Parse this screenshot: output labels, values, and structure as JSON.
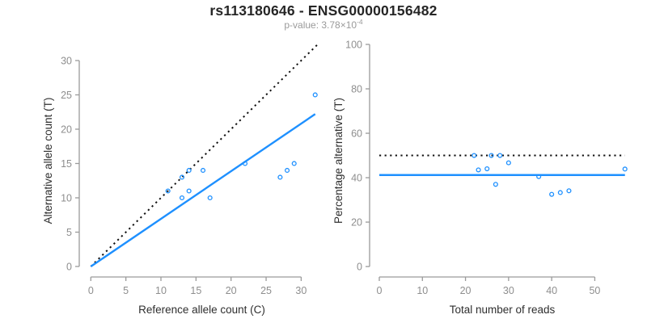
{
  "header": {
    "title": "rs113180646 - ENSG00000156482",
    "p_label": "p-value: 3.78×10",
    "p_exponent": "-4"
  },
  "colors": {
    "point_blue": "#1E90FF",
    "fit_line_blue": "#1E90FF",
    "reference_line_black": "#111111",
    "axis_gray": "#9a9a9a",
    "tick_label_gray": "#8e8e8e",
    "axis_title_dark": "#2e2e2e",
    "title_dark": "#262626",
    "subtitle_gray": "#9a9a9a",
    "background": "#ffffff"
  },
  "chart_data": [
    {
      "type": "scatter",
      "name": "allele-count-scatter",
      "xlabel": "Reference allele count (C)",
      "ylabel": "Alternative allele count (T)",
      "x_ticks": [
        0,
        5,
        10,
        15,
        20,
        25,
        30
      ],
      "y_ticks": [
        0,
        5,
        10,
        15,
        20,
        25,
        30
      ],
      "x_range": [
        -1.65,
        33.3
      ],
      "y_range": [
        -1.53,
        32.35
      ],
      "grid": false,
      "points": [
        [
          11,
          11
        ],
        [
          13,
          10
        ],
        [
          13,
          13
        ],
        [
          14,
          11
        ],
        [
          14,
          14
        ],
        [
          16,
          14
        ],
        [
          17,
          10
        ],
        [
          22,
          15
        ],
        [
          27,
          13
        ],
        [
          28,
          14
        ],
        [
          29,
          15
        ],
        [
          32,
          25
        ]
      ],
      "lines": [
        {
          "name": "identity-line",
          "style": "dotted",
          "color": "#111111",
          "width": 2,
          "x1": 0,
          "y1": 0,
          "x2": 32.35,
          "y2": 32.35
        },
        {
          "name": "fit-line",
          "style": "solid",
          "color": "#1E90FF",
          "width": 2.4,
          "x1": 0,
          "y1": 0,
          "x2": 32,
          "y2": 22.2
        }
      ]
    },
    {
      "type": "scatter",
      "name": "percentage-reads-scatter",
      "xlabel": "Total number of reads",
      "ylabel": "Percentage alternative (T)",
      "x_ticks": [
        0,
        10,
        20,
        30,
        40,
        50
      ],
      "y_ticks": [
        0,
        20,
        40,
        60,
        80,
        100
      ],
      "x_range": [
        -2.25,
        59.3
      ],
      "y_range": [
        -4.7,
        100
      ],
      "grid": false,
      "points": [
        [
          22,
          50
        ],
        [
          23,
          43.5
        ],
        [
          25,
          44
        ],
        [
          26,
          50
        ],
        [
          27,
          37
        ],
        [
          28,
          50
        ],
        [
          30,
          46.7
        ],
        [
          37,
          40.5
        ],
        [
          40,
          32.5
        ],
        [
          42,
          33.3
        ],
        [
          44,
          34.1
        ],
        [
          57,
          43.9
        ]
      ],
      "lines": [
        {
          "name": "expected-50-line",
          "style": "dotted",
          "color": "#111111",
          "width": 2,
          "x1": 0,
          "y1": 50,
          "x2": 57,
          "y2": 50
        },
        {
          "name": "fit-line",
          "style": "solid",
          "color": "#1E90FF",
          "width": 2.4,
          "x1": 0,
          "y1": 41.2,
          "x2": 57,
          "y2": 41.2
        }
      ]
    }
  ]
}
